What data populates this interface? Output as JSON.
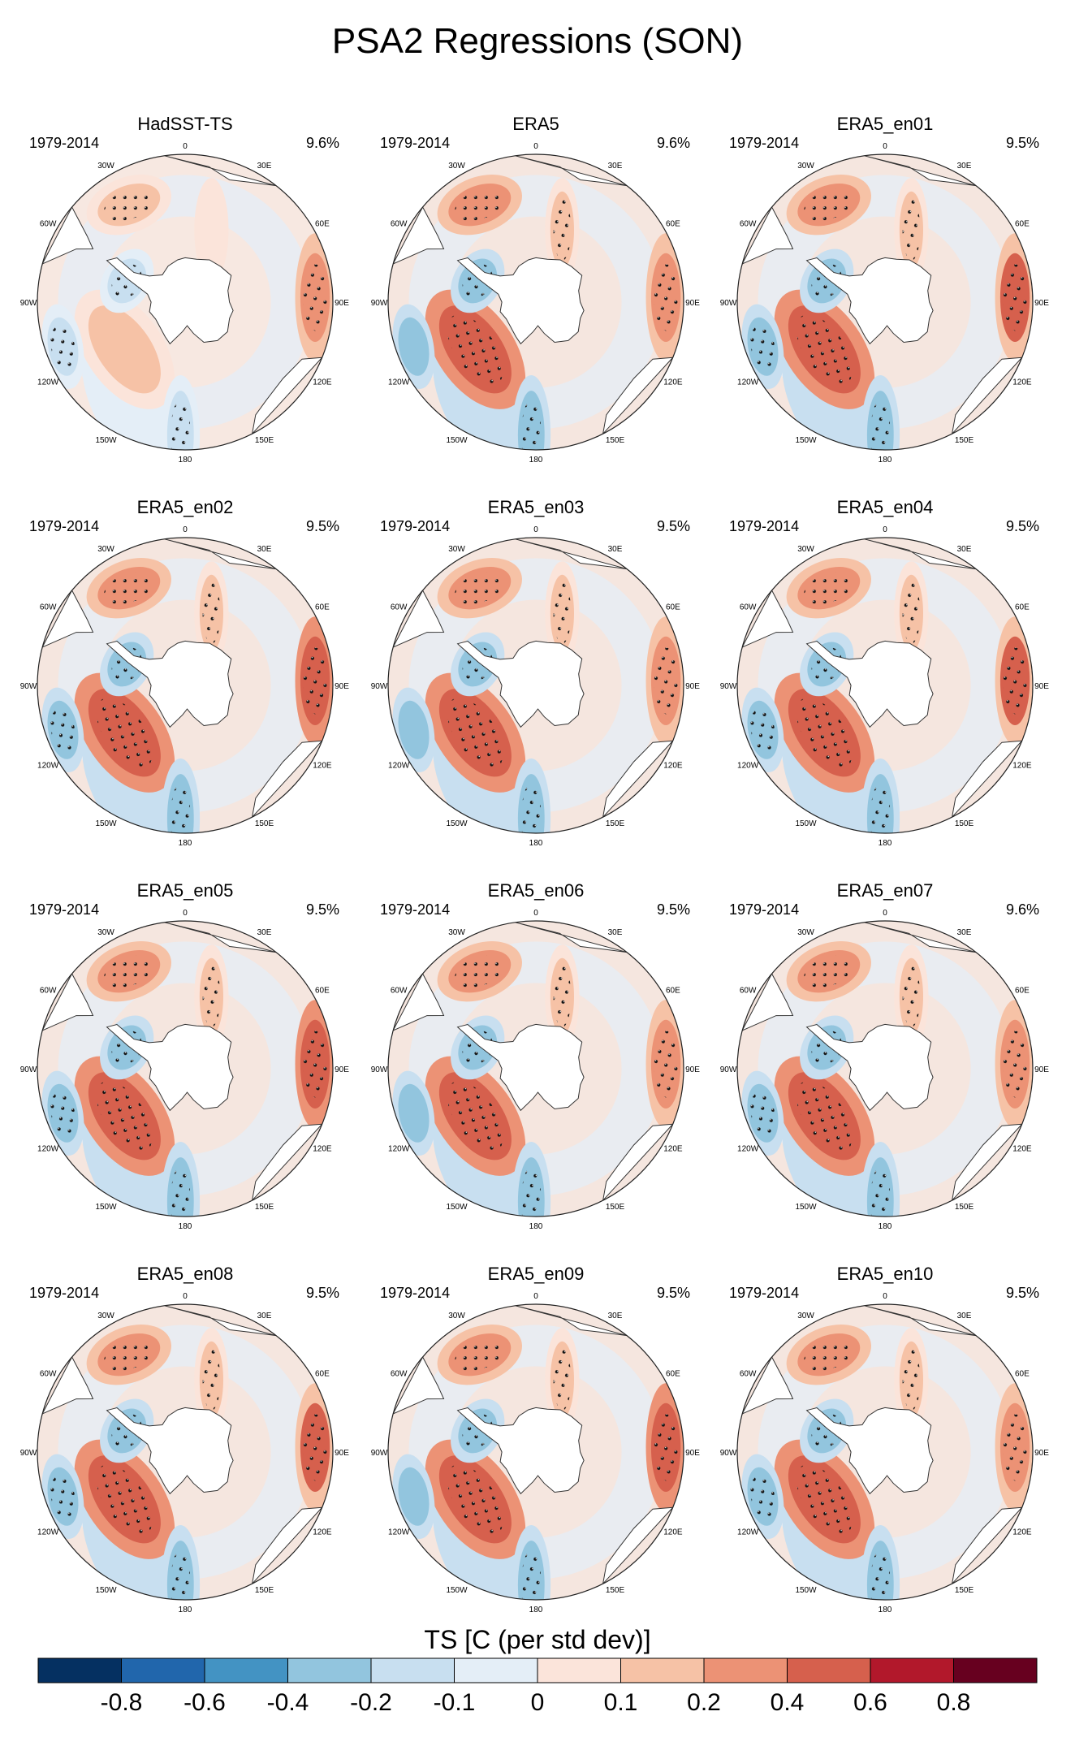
{
  "figure": {
    "title": "PSA2 Regressions (SON)"
  },
  "panels": [
    {
      "name": "HadSST-TS",
      "period": "1979-2014",
      "pct": "9.6%"
    },
    {
      "name": "ERA5",
      "period": "1979-2014",
      "pct": "9.6%"
    },
    {
      "name": "ERA5_en01",
      "period": "1979-2014",
      "pct": "9.5%"
    },
    {
      "name": "ERA5_en02",
      "period": "1979-2014",
      "pct": "9.5%"
    },
    {
      "name": "ERA5_en03",
      "period": "1979-2014",
      "pct": "9.5%"
    },
    {
      "name": "ERA5_en04",
      "period": "1979-2014",
      "pct": "9.5%"
    },
    {
      "name": "ERA5_en05",
      "period": "1979-2014",
      "pct": "9.5%"
    },
    {
      "name": "ERA5_en06",
      "period": "1979-2014",
      "pct": "9.5%"
    },
    {
      "name": "ERA5_en07",
      "period": "1979-2014",
      "pct": "9.6%"
    },
    {
      "name": "ERA5_en08",
      "period": "1979-2014",
      "pct": "9.5%"
    },
    {
      "name": "ERA5_en09",
      "period": "1979-2014",
      "pct": "9.5%"
    },
    {
      "name": "ERA5_en10",
      "period": "1979-2014",
      "pct": "9.5%"
    }
  ],
  "lon_labels": [
    "0",
    "30E",
    "60E",
    "90E",
    "120E",
    "150E",
    "180",
    "150W",
    "120W",
    "90W",
    "60W",
    "30W"
  ],
  "chart_data": {
    "type": "heatmap",
    "title": "PSA2 Regressions (SON)",
    "projection": "south-polar-stereographic",
    "variable": "TS [C (per std dev)]",
    "colorbar": {
      "label": "TS [C (per std dev)]",
      "levels": [
        -0.8,
        -0.6,
        -0.4,
        -0.2,
        -0.1,
        0,
        0.1,
        0.2,
        0.4,
        0.6,
        0.8
      ],
      "tick_labels": [
        "-0.8",
        "-0.6",
        "-0.4",
        "-0.2",
        "-0.1",
        "0",
        "0.1",
        "0.2",
        "0.4",
        "0.6",
        "0.8"
      ],
      "colors": [
        "#053061",
        "#2166ac",
        "#4393c3",
        "#92c5de",
        "#c8dff0",
        "#e4eef7",
        "#fbe4da",
        "#f6c2a6",
        "#ec9275",
        "#d6604d",
        "#b2182b",
        "#67001f"
      ]
    },
    "anomaly_features": [
      {
        "name": "south-atlantic-warm",
        "lon_deg": 330,
        "radius_frac": 0.78,
        "value": 0.35
      },
      {
        "name": "indian-ocean-warm",
        "lon_deg": 88,
        "radius_frac": 0.86,
        "value": 0.4
      },
      {
        "name": "amundsen-sea-warm",
        "lon_deg": 232,
        "radius_frac": 0.52,
        "value": 0.5
      },
      {
        "name": "south-pacific-cold",
        "lon_deg": 182,
        "radius_frac": 0.86,
        "value": -0.3
      },
      {
        "name": "peninsula-cold",
        "lon_deg": 292,
        "radius_frac": 0.42,
        "value": -0.25
      },
      {
        "name": "southeast-pacific-cold",
        "lon_deg": 250,
        "radius_frac": 0.88,
        "value": -0.25
      },
      {
        "name": "atlantic-indian-warm-belt",
        "lon_deg": 20,
        "radius_frac": 0.52,
        "value": 0.15
      }
    ]
  }
}
